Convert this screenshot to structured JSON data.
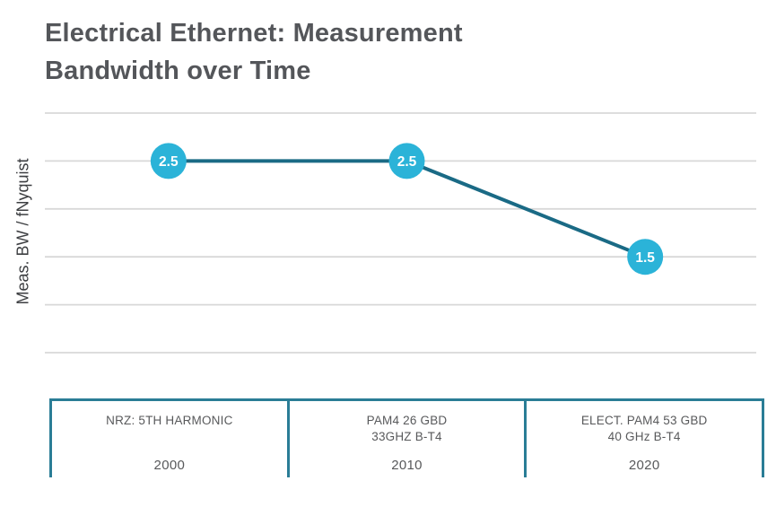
{
  "page": {
    "background": "#FFFFFF"
  },
  "chart_data": {
    "type": "line",
    "title": "Electrical Ethernet: Measurement Bandwidth over Time",
    "ylabel": "Meas. BW / fNyquist",
    "xlabel": "",
    "x": [
      "2000",
      "2010",
      "2020"
    ],
    "series": [
      {
        "name": "Meas. BW / fNyquist",
        "values": [
          2.5,
          2.5,
          1.5
        ]
      }
    ],
    "point_labels": [
      "2.5",
      "2.5",
      "1.5"
    ],
    "ylim": [
      0.5,
      3.0
    ],
    "ytick_step": 0.5,
    "gridlines": 6,
    "grid": "horizontal",
    "legend": "none",
    "columns": [
      {
        "label": "NRZ: 5TH HARMONIC",
        "label2": "",
        "year": "2000"
      },
      {
        "label": "PAM4 26 GBD",
        "label2": "33GHZ B-T4",
        "year": "2010"
      },
      {
        "label": "ELECT. PAM4 53 GBD",
        "label2": "40 GHz B-T4",
        "year": "2020"
      }
    ],
    "colors": {
      "marker_fill": "#2BB3D8",
      "marker_text": "#FFFFFF",
      "line": "#1A6A85",
      "gridline": "#D8D8D8",
      "table_border": "#2A7D96",
      "title_text": "#54565A",
      "axis_text": "#58595B"
    }
  }
}
